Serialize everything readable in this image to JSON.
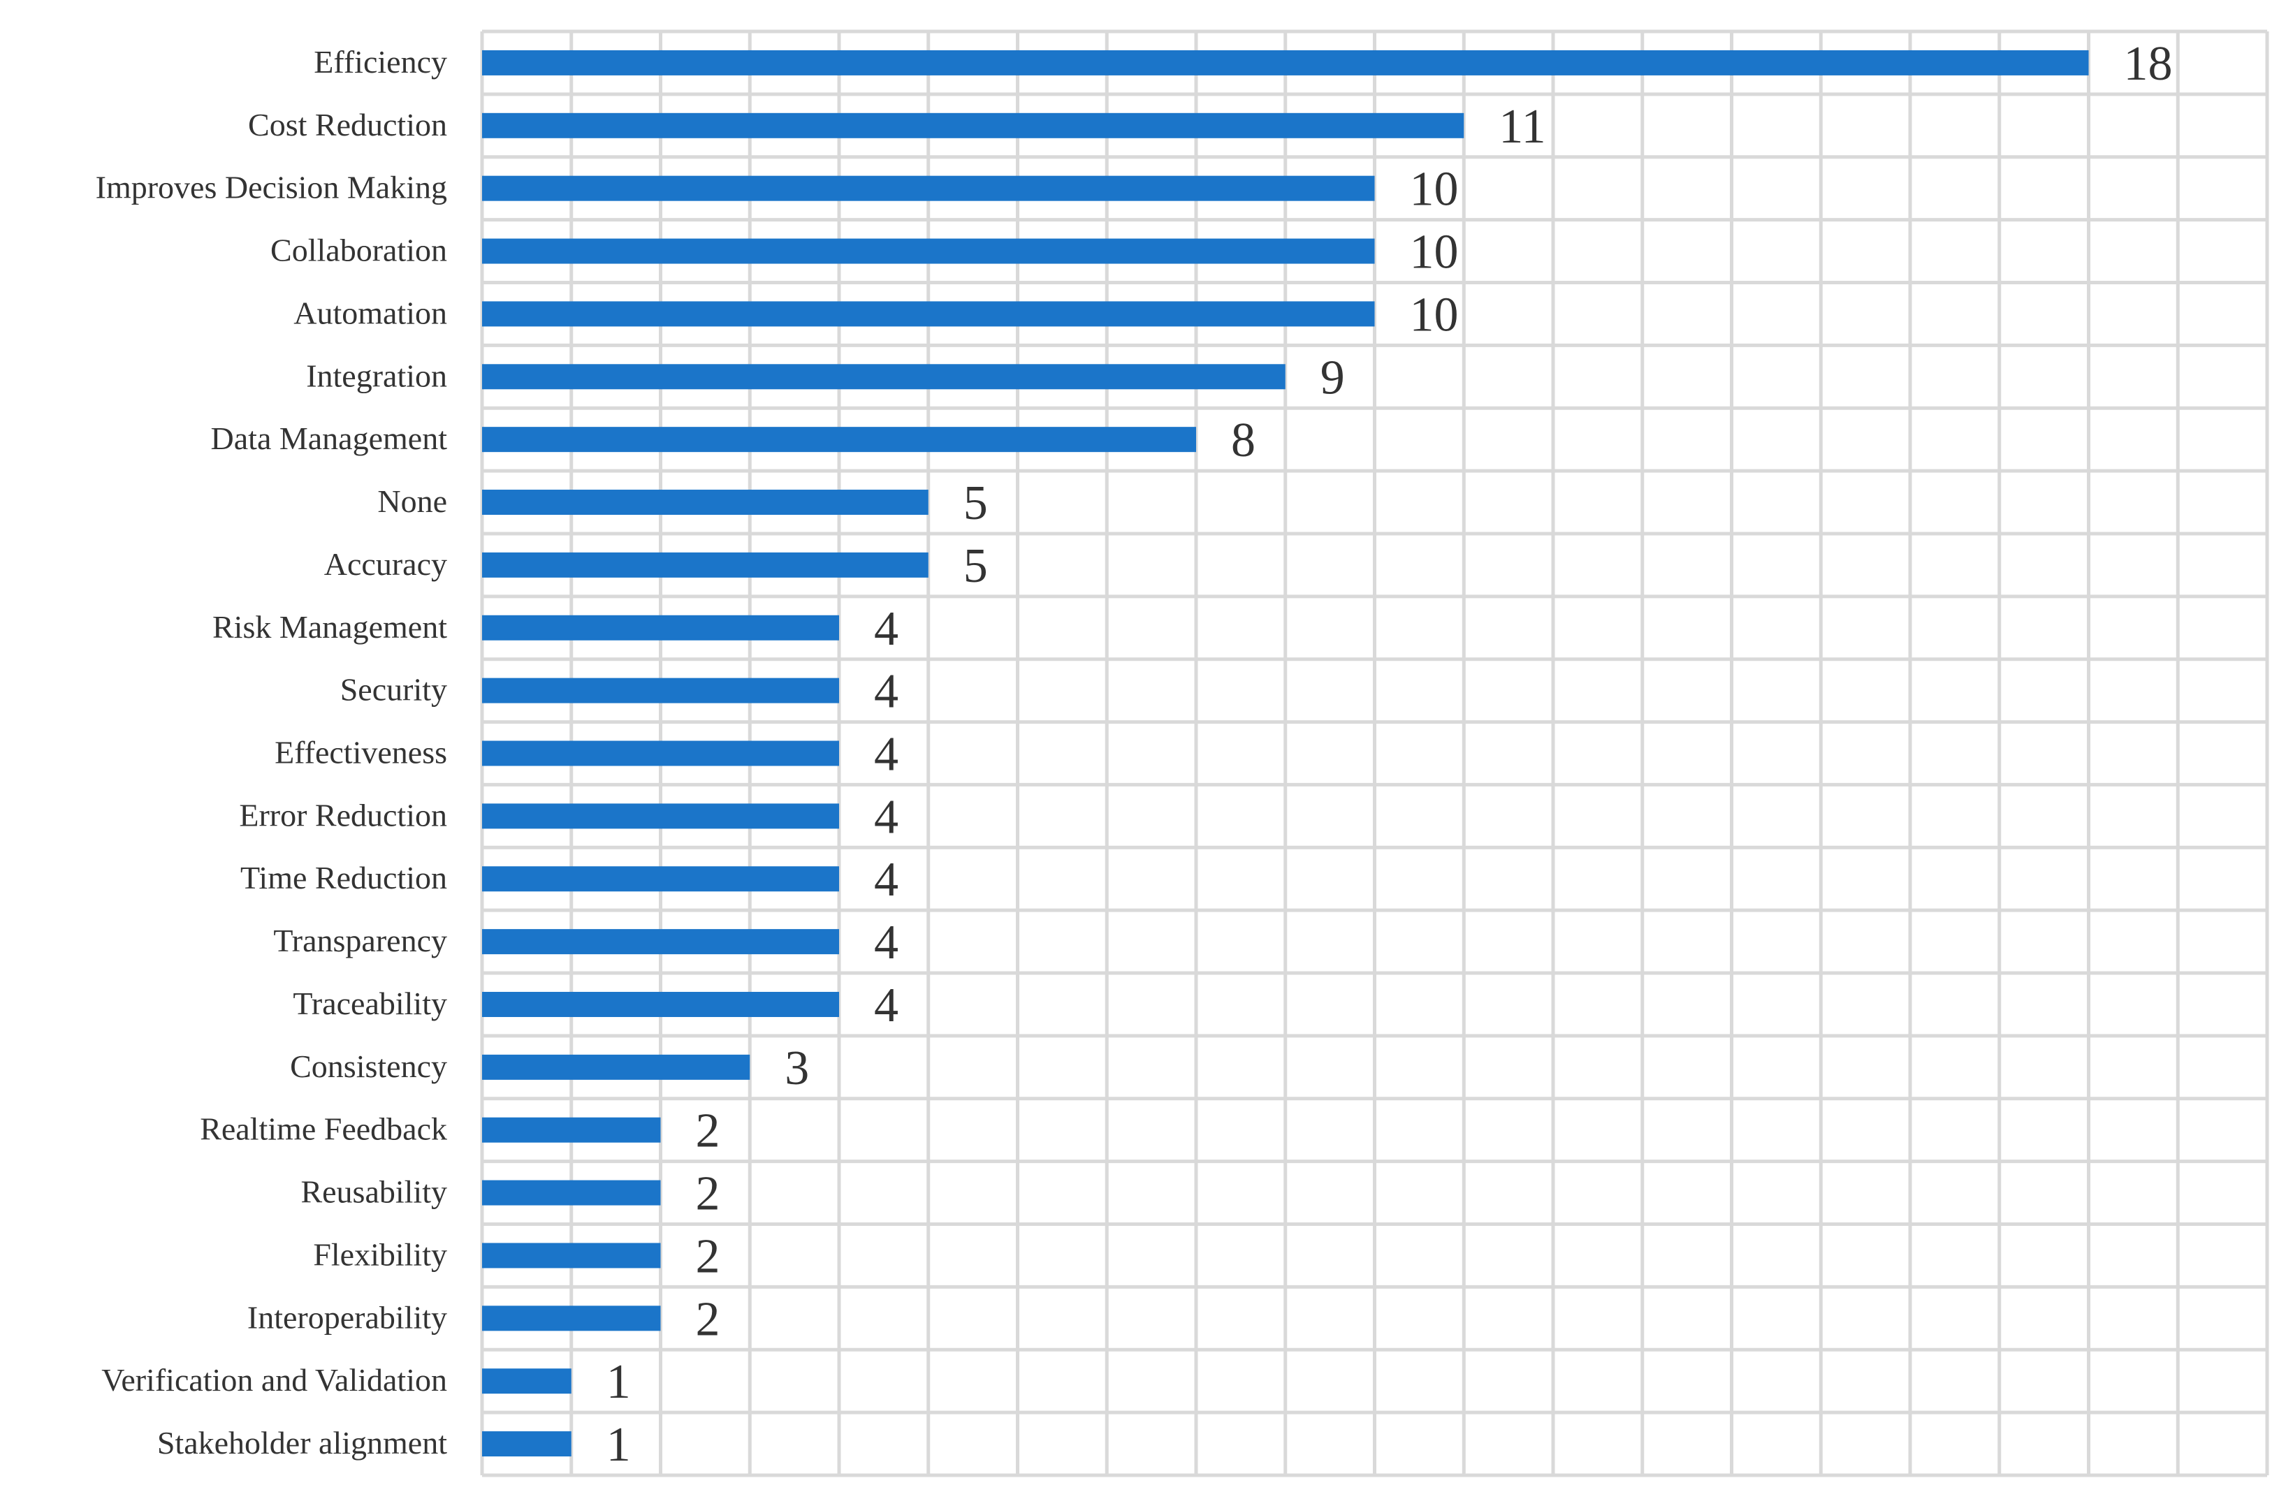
{
  "chart_data": {
    "type": "bar",
    "orientation": "horizontal",
    "title": "",
    "xlabel": "",
    "ylabel": "",
    "xlim": [
      0,
      20
    ],
    "grid": true,
    "legend": "none",
    "bar_color": "#1B75C9",
    "grid_color": "#D9D9D9",
    "categories": [
      "Efficiency",
      "Cost Reduction",
      "Improves Decision Making",
      "Collaboration",
      "Automation",
      "Integration",
      "Data Management",
      "None",
      "Accuracy",
      "Risk Management",
      "Security",
      "Effectiveness",
      "Error Reduction",
      "Time Reduction",
      "Transparency",
      "Traceability",
      "Consistency",
      "Realtime Feedback",
      "Reusability",
      "Flexibility",
      "Interoperability",
      "Verification and Validation",
      "Stakeholder alignment"
    ],
    "values": [
      18,
      11,
      10,
      10,
      10,
      9,
      8,
      5,
      5,
      4,
      4,
      4,
      4,
      4,
      4,
      4,
      3,
      2,
      2,
      2,
      2,
      1,
      1
    ],
    "data_labels": [
      "18",
      "11",
      "10",
      "10",
      "10",
      "9",
      "8",
      "5",
      "5",
      "4",
      "4",
      "4",
      "4",
      "4",
      "4",
      "4",
      "3",
      "2",
      "2",
      "2",
      "2",
      "1",
      "1"
    ]
  }
}
